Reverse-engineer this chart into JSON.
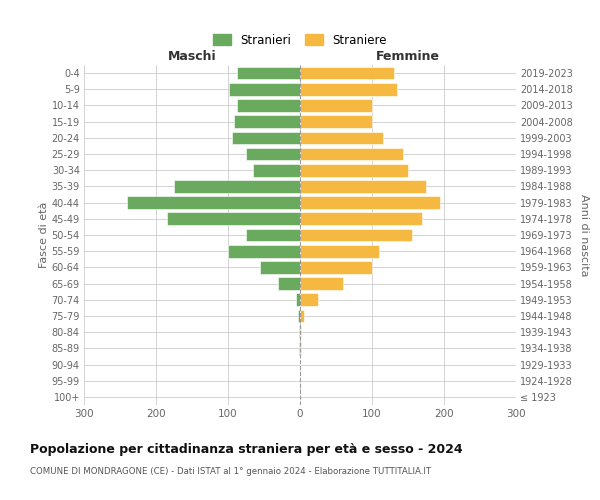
{
  "age_groups": [
    "100+",
    "95-99",
    "90-94",
    "85-89",
    "80-84",
    "75-79",
    "70-74",
    "65-69",
    "60-64",
    "55-59",
    "50-54",
    "45-49",
    "40-44",
    "35-39",
    "30-34",
    "25-29",
    "20-24",
    "15-19",
    "10-14",
    "5-9",
    "0-4"
  ],
  "birth_years": [
    "≤ 1923",
    "1924-1928",
    "1929-1933",
    "1934-1938",
    "1939-1943",
    "1944-1948",
    "1949-1953",
    "1954-1958",
    "1959-1963",
    "1964-1968",
    "1969-1973",
    "1974-1978",
    "1979-1983",
    "1984-1988",
    "1989-1993",
    "1994-1998",
    "1999-2003",
    "2004-2008",
    "2009-2013",
    "2014-2018",
    "2019-2023"
  ],
  "males": [
    0,
    0,
    0,
    1,
    1,
    3,
    5,
    30,
    55,
    100,
    75,
    185,
    240,
    175,
    65,
    75,
    95,
    92,
    88,
    98,
    88
  ],
  "females": [
    0,
    0,
    0,
    2,
    2,
    5,
    25,
    60,
    100,
    110,
    155,
    170,
    195,
    175,
    150,
    143,
    115,
    100,
    100,
    135,
    130
  ],
  "male_color": "#6aaa5e",
  "female_color": "#f5b942",
  "background_color": "#ffffff",
  "grid_color": "#cccccc",
  "title": "Popolazione per cittadinanza straniera per età e sesso - 2024",
  "subtitle": "COMUNE DI MONDRAGONE (CE) - Dati ISTAT al 1° gennaio 2024 - Elaborazione TUTTITALIA.IT",
  "left_label": "Maschi",
  "right_label": "Femmine",
  "y_left_label": "Fasce di età",
  "y_right_label": "Anni di nascita",
  "legend_male": "Stranieri",
  "legend_female": "Straniere",
  "xlim": 300
}
